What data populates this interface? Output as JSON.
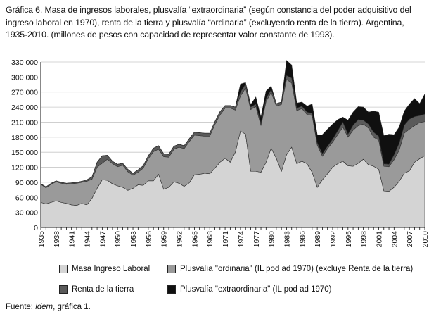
{
  "title_text": "Gráfica 6. Masa de ingresos laborales, plusvalía “extraordinaria” (según constancia del poder adquisitivo del ingreso laboral en 1970), renta de la tierra y plusvalía “ordinaria” (excluyendo renta de la tierra). Argentina, 1935-2010. (millones de pesos con capacidad de representar valor constante de 1993).",
  "source": {
    "label": "Fuente:",
    "ref": "idem",
    "rest": ", gráfica 1."
  },
  "chart_data": {
    "type": "area",
    "stacked": true,
    "title": "Gráfica 6. Masa de ingresos laborales, plusvalía “extraordinaria” (según constancia del poder adquisitivo del ingreso laboral en 1970), renta de la tierra y plusvalía “ordinaria” (excluyendo renta de la tierra). Argentina, 1935-2010. (millones de pesos con capacidad de representar valor constante de 1993).",
    "xlabel": "",
    "ylabel": "",
    "ylim": [
      0,
      330000
    ],
    "yticks": [
      0,
      30000,
      60000,
      90000,
      120000,
      150000,
      180000,
      210000,
      240000,
      270000,
      300000,
      330000
    ],
    "ytick_labels": [
      "0",
      "30 000",
      "60 000",
      "90 000",
      "120 000",
      "150 000",
      "180 000",
      "210 000",
      "240 000",
      "270 000",
      "300 000",
      "330 000"
    ],
    "xtick_labels": [
      "1935",
      "1938",
      "1941",
      "1944",
      "1947",
      "1950",
      "1953",
      "1956",
      "1959",
      "1962",
      "1965",
      "1968",
      "1971",
      "1974",
      "1977",
      "1980",
      "1983",
      "1986",
      "1989",
      "1992",
      "1995",
      "1998",
      "2001",
      "2004",
      "2007",
      "2010"
    ],
    "x": [
      1935,
      1936,
      1937,
      1938,
      1939,
      1940,
      1941,
      1942,
      1943,
      1944,
      1945,
      1946,
      1947,
      1948,
      1949,
      1950,
      1951,
      1952,
      1953,
      1954,
      1955,
      1956,
      1957,
      1958,
      1959,
      1960,
      1961,
      1962,
      1963,
      1964,
      1965,
      1966,
      1967,
      1968,
      1969,
      1970,
      1971,
      1972,
      1973,
      1974,
      1975,
      1976,
      1977,
      1978,
      1979,
      1980,
      1981,
      1982,
      1983,
      1984,
      1985,
      1986,
      1987,
      1988,
      1989,
      1990,
      1991,
      1992,
      1993,
      1994,
      1995,
      1996,
      1997,
      1998,
      1999,
      2000,
      2001,
      2002,
      2003,
      2004,
      2005,
      2006,
      2007,
      2008,
      2009,
      2010
    ],
    "series": [
      {
        "name": "Masa Ingreso Laboral",
        "color": "#d4d4d4",
        "values": [
          50000,
          47000,
          50000,
          53000,
          50000,
          48000,
          45000,
          44000,
          48000,
          45000,
          58000,
          78000,
          95000,
          94000,
          87000,
          83000,
          80000,
          74000,
          78000,
          85000,
          84000,
          93000,
          93000,
          106000,
          76000,
          80000,
          91000,
          88000,
          82000,
          89000,
          105000,
          106000,
          108000,
          107000,
          118000,
          130000,
          138000,
          130000,
          150000,
          192000,
          186000,
          112000,
          112000,
          110000,
          130000,
          158000,
          138000,
          112000,
          145000,
          160000,
          127000,
          132000,
          127000,
          110000,
          80000,
          95000,
          107000,
          120000,
          127000,
          132000,
          123000,
          122000,
          128000,
          136000,
          125000,
          122000,
          116000,
          73000,
          72000,
          80000,
          92000,
          108000,
          113000,
          130000,
          137000,
          143000
        ]
      },
      {
        "name": "Plusvalía \"ordinaria\" (IL pod ad 1970) (excluye Renta de la tierra)",
        "color": "#9a9a9a",
        "values": [
          36000,
          32000,
          36000,
          38000,
          38000,
          38000,
          42000,
          44000,
          42000,
          47000,
          38000,
          42000,
          33000,
          42000,
          40000,
          38000,
          44000,
          37000,
          26000,
          25000,
          34000,
          44000,
          58000,
          50000,
          65000,
          60000,
          65000,
          72000,
          75000,
          82000,
          79000,
          77000,
          74000,
          75000,
          87000,
          94000,
          100000,
          108000,
          84000,
          70000,
          92000,
          123000,
          129000,
          93000,
          121000,
          111000,
          104000,
          133000,
          150000,
          128000,
          106000,
          105000,
          98000,
          113000,
          84000,
          47000,
          50000,
          50000,
          58000,
          68000,
          57000,
          72000,
          75000,
          70000,
          73000,
          58000,
          58000,
          49000,
          49000,
          55000,
          62000,
          80000,
          83000,
          73000,
          72000,
          68000
        ]
      },
      {
        "name": "Renta de la tierra",
        "color": "#5a5a5a",
        "values": [
          1000,
          2000,
          2000,
          2000,
          2000,
          2000,
          2000,
          2000,
          2000,
          3000,
          5000,
          10000,
          15000,
          8000,
          5000,
          5000,
          4000,
          5000,
          4000,
          5000,
          5000,
          6000,
          7000,
          7000,
          6000,
          6000,
          6000,
          6000,
          6000,
          6000,
          6000,
          6000,
          6000,
          6000,
          6000,
          7000,
          5000,
          5000,
          6000,
          8000,
          8000,
          5000,
          5000,
          5000,
          6000,
          6000,
          5000,
          5000,
          8000,
          10000,
          5000,
          5000,
          5000,
          5000,
          5000,
          5000,
          5000,
          6000,
          8000,
          10000,
          6000,
          10000,
          12000,
          8000,
          8000,
          10000,
          8000,
          5000,
          5000,
          10000,
          14000,
          16000,
          20000,
          18000,
          14000,
          15000
        ]
      },
      {
        "name": "Plusvalía \"extraordinaria\" (IL pod ad 1970)",
        "color": "#101010",
        "values": [
          0,
          0,
          0,
          0,
          0,
          0,
          0,
          0,
          0,
          0,
          0,
          0,
          0,
          0,
          0,
          0,
          0,
          0,
          0,
          0,
          0,
          0,
          0,
          0,
          0,
          0,
          0,
          0,
          0,
          0,
          0,
          0,
          0,
          0,
          0,
          0,
          0,
          0,
          0,
          16000,
          3000,
          5000,
          14000,
          12000,
          15000,
          7000,
          0,
          0,
          30000,
          26000,
          10000,
          8000,
          12000,
          18000,
          16000,
          38000,
          34000,
          30000,
          22000,
          10000,
          28000,
          26000,
          26000,
          26000,
          24000,
          42000,
          48000,
          56000,
          60000,
          40000,
          32000,
          28000,
          30000,
          36000,
          24000,
          40000
        ]
      }
    ]
  }
}
